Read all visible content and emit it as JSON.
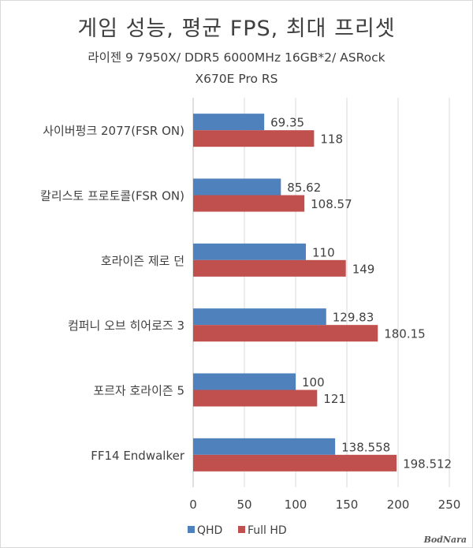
{
  "chart_data": {
    "type": "bar",
    "orientation": "horizontal",
    "title": "게임 성능, 평균 FPS, 최대 프리셋",
    "subtitle_lines": [
      "라이젠 9 7950X/ DDR5 6000MHz 16GB*2/ ASRock",
      "X670E Pro RS"
    ],
    "categories": [
      "사이버펑크 2077(FSR ON)",
      "칼리스토 프로토콜(FSR ON)",
      "호라이즌 제로 던",
      "컴퍼니 오브 히어로즈 3",
      "포르자 호라이즌 5",
      "FF14 Endwalker"
    ],
    "series": [
      {
        "name": "QHD",
        "color": "#4f81bd",
        "values": [
          69.35,
          85.62,
          110,
          129.83,
          100,
          138.558
        ],
        "labels": [
          "69.35",
          "85.62",
          "110",
          "129.83",
          "100",
          "138.558"
        ]
      },
      {
        "name": "Full HD",
        "color": "#c0504d",
        "values": [
          118,
          108.57,
          149,
          180.15,
          121,
          198.512
        ],
        "labels": [
          "118",
          "108.57",
          "149",
          "180.15",
          "121",
          "198.512"
        ]
      }
    ],
    "xlim": [
      0,
      250
    ],
    "xticks": [
      "0",
      "50",
      "100",
      "150",
      "200",
      "250"
    ],
    "grid": true,
    "legend": "bottom"
  },
  "watermark": "BodNara"
}
